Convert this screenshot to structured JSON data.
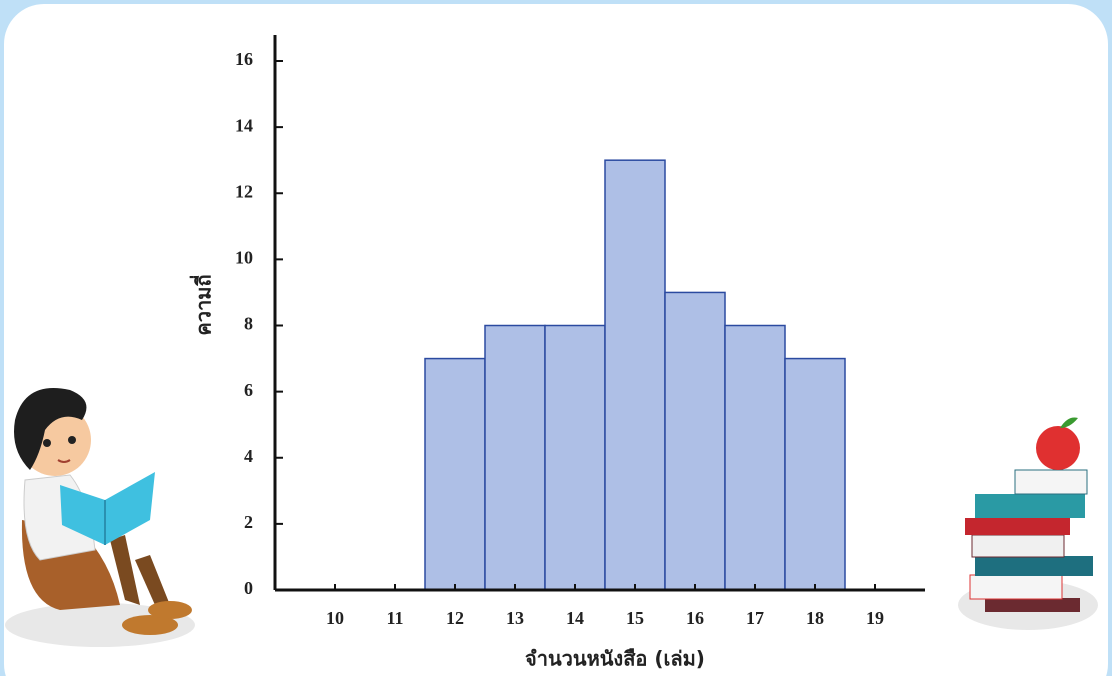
{
  "chart_data": {
    "type": "histogram",
    "bins": [
      11.5,
      12.5,
      13.5,
      14.5,
      15.5,
      16.5,
      17.5,
      18.5
    ],
    "values": [
      7,
      8,
      8,
      13,
      9,
      8,
      7
    ],
    "color": "#aebfe6",
    "x_label": "จำนวนหนังสือ (เล่ม)",
    "y_label": "ความถี่",
    "xlim": [
      9,
      20
    ],
    "xticks": [
      10,
      11,
      12,
      13,
      14,
      15,
      16,
      17,
      18,
      19
    ],
    "ylim": [
      0,
      16
    ],
    "yticks": [
      0,
      2,
      4,
      6,
      8,
      10,
      12,
      14,
      16
    ]
  }
}
